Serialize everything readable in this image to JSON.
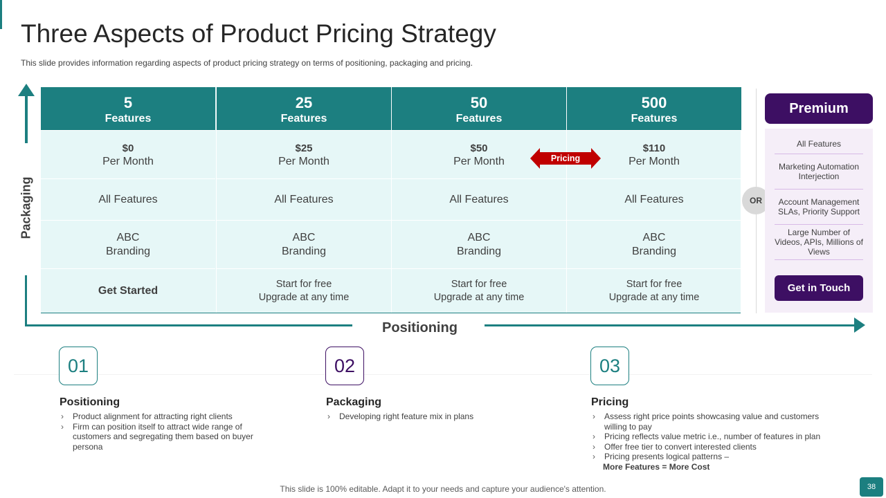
{
  "slide": {
    "title": "Three Aspects of Product Pricing Strategy",
    "subtitle": "This slide provides information regarding aspects of product pricing strategy on terms of positioning, packaging and pricing.",
    "y_axis_label": "Packaging",
    "x_axis_label": "Positioning",
    "pricing_label": "Pricing",
    "or_label": "OR",
    "footer": "This slide is 100% editable. Adapt it to your needs and capture your audience's attention.",
    "page_number": "38",
    "colors": {
      "teal": "#1c7f80",
      "purple": "#3d0f63",
      "red": "#c00000",
      "cell_bg": "#e6f7f7",
      "panel_bg": "#f5eef8"
    }
  },
  "plans": [
    {
      "count": "5",
      "unit": "Features",
      "price": "$0",
      "per": "Per Month",
      "features": "All Features",
      "brand1": "ABC",
      "brand2": "Branding",
      "cta": "Get Started",
      "cta2": ""
    },
    {
      "count": "25",
      "unit": "Features",
      "price": "$25",
      "per": "Per Month",
      "features": "All Features",
      "brand1": "ABC",
      "brand2": "Branding",
      "cta": "Start for free",
      "cta2": "Upgrade at any time"
    },
    {
      "count": "50",
      "unit": "Features",
      "price": "$50",
      "per": "Per Month",
      "features": "All Features",
      "brand1": "ABC",
      "brand2": "Branding",
      "cta": "Start for free",
      "cta2": "Upgrade at any time"
    },
    {
      "count": "500",
      "unit": "Features",
      "price": "$110",
      "per": "Per Month",
      "features": "All Features",
      "brand1": "ABC",
      "brand2": "Branding",
      "cta": "Start for free",
      "cta2": "Upgrade at any time"
    }
  ],
  "premium": {
    "title": "Premium",
    "items": [
      "All Features",
      "Marketing Automation Interjection",
      "Account Management SLAs, Priority Support",
      "Large Number of Videos, APIs, Millions of Views"
    ],
    "button": "Get in Touch"
  },
  "aspects": [
    {
      "number": "01",
      "title": "Positioning",
      "bullets": [
        "Product alignment for attracting right clients",
        "Firm can position itself to attract wide range of customers and segregating them based on buyer persona"
      ]
    },
    {
      "number": "02",
      "title": "Packaging",
      "bullets": [
        "Developing right feature mix in plans"
      ]
    },
    {
      "number": "03",
      "title": "Pricing",
      "bullets": [
        "Assess right price points showcasing value and customers willing to pay",
        "Pricing reflects value metric i.e., number of features in plan",
        "Offer free tier to convert interested clients",
        "Pricing presents logical patterns –"
      ],
      "emphasis": "More Features = More Cost"
    }
  ]
}
